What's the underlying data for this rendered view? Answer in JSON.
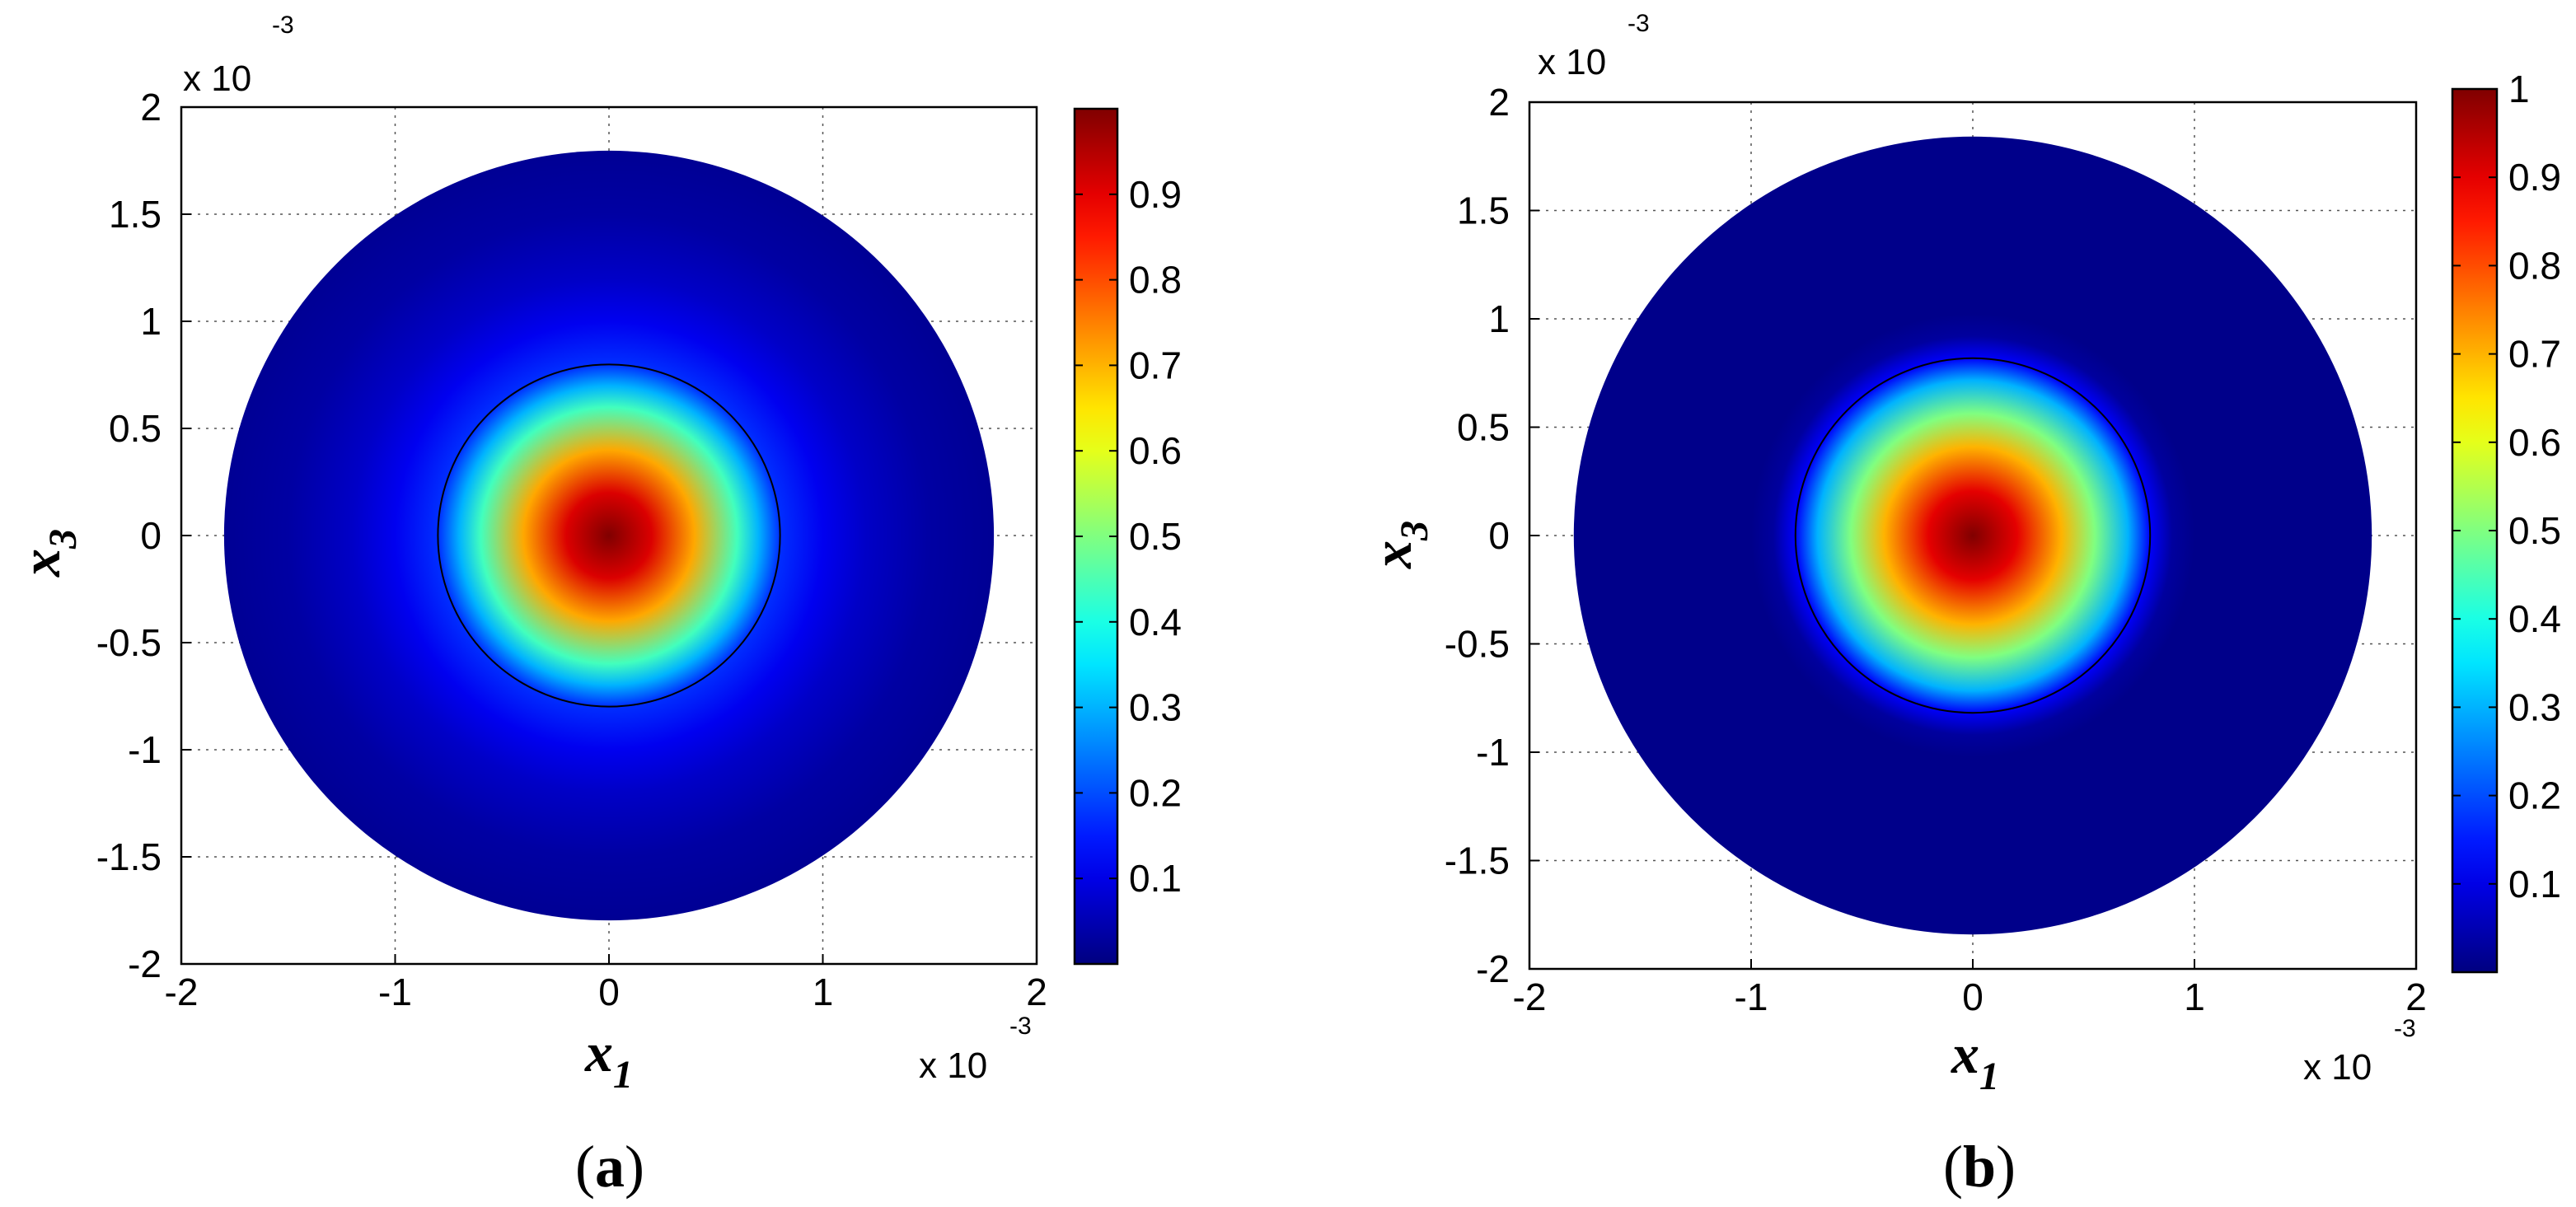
{
  "chart_data": [
    {
      "type": "heatmap",
      "panel_label": "a",
      "xlabel": "x",
      "xlabel_sub": "1",
      "ylabel": "x",
      "ylabel_sub": "3",
      "x_multiplier": {
        "base": "x 10",
        "exponent": "-3"
      },
      "y_multiplier": {
        "base": "x 10",
        "exponent": "-3"
      },
      "xlim": [
        -2,
        2
      ],
      "ylim": [
        -2,
        2
      ],
      "x_ticks": [
        "-2",
        "-1",
        "0",
        "1",
        "2"
      ],
      "y_ticks": [
        "2",
        "1.5",
        "1",
        "0.5",
        "0",
        "-0.5",
        "-1",
        "-1.5",
        "-2"
      ],
      "grid": true,
      "colormap": "jet",
      "colorbar_range": [
        0,
        1
      ],
      "colorbar_ticks": [
        "0.9",
        "0.8",
        "0.7",
        "0.6",
        "0.5",
        "0.4",
        "0.3",
        "0.2",
        "0.1"
      ],
      "domain_radius": 1.8,
      "inner_circle_radius": 0.8,
      "peak_value": 1,
      "peak_x": 0,
      "peak_y": 0,
      "profile_r": [
        0,
        0.2,
        0.4,
        0.6,
        0.7,
        0.8,
        1.0,
        1.2,
        1.5,
        1.8
      ],
      "profile_v": [
        1,
        0.91,
        0.71,
        0.44,
        0.3,
        0.17,
        0.11,
        0.07,
        0.035,
        0.02
      ]
    },
    {
      "type": "heatmap",
      "panel_label": "b",
      "xlabel": "x",
      "xlabel_sub": "1",
      "ylabel": "x",
      "ylabel_sub": "3",
      "x_multiplier": {
        "base": "x 10",
        "exponent": "-3"
      },
      "y_multiplier": {
        "base": "x 10",
        "exponent": "-3"
      },
      "xlim": [
        -2,
        2
      ],
      "ylim": [
        -2,
        2
      ],
      "x_ticks": [
        "-2",
        "-1",
        "0",
        "1",
        "2"
      ],
      "y_ticks": [
        "2",
        "1.5",
        "1",
        "0.5",
        "0",
        "-0.5",
        "-1",
        "-1.5",
        "-2"
      ],
      "grid": true,
      "colormap": "jet",
      "colorbar_range": [
        0,
        1
      ],
      "colorbar_ticks": [
        "1",
        "0.9",
        "0.8",
        "0.7",
        "0.6",
        "0.5",
        "0.4",
        "0.3",
        "0.2",
        "0.1"
      ],
      "domain_radius": 1.8,
      "inner_circle_radius": 0.8,
      "peak_value": 1,
      "peak_x": 0,
      "peak_y": 0,
      "profile_r": [
        0,
        0.2,
        0.4,
        0.55,
        0.7,
        0.8,
        0.9,
        1.0,
        1.8
      ],
      "profile_v": [
        1,
        0.9,
        0.7,
        0.5,
        0.3,
        0.12,
        0.03,
        0.01,
        0.01
      ]
    }
  ]
}
